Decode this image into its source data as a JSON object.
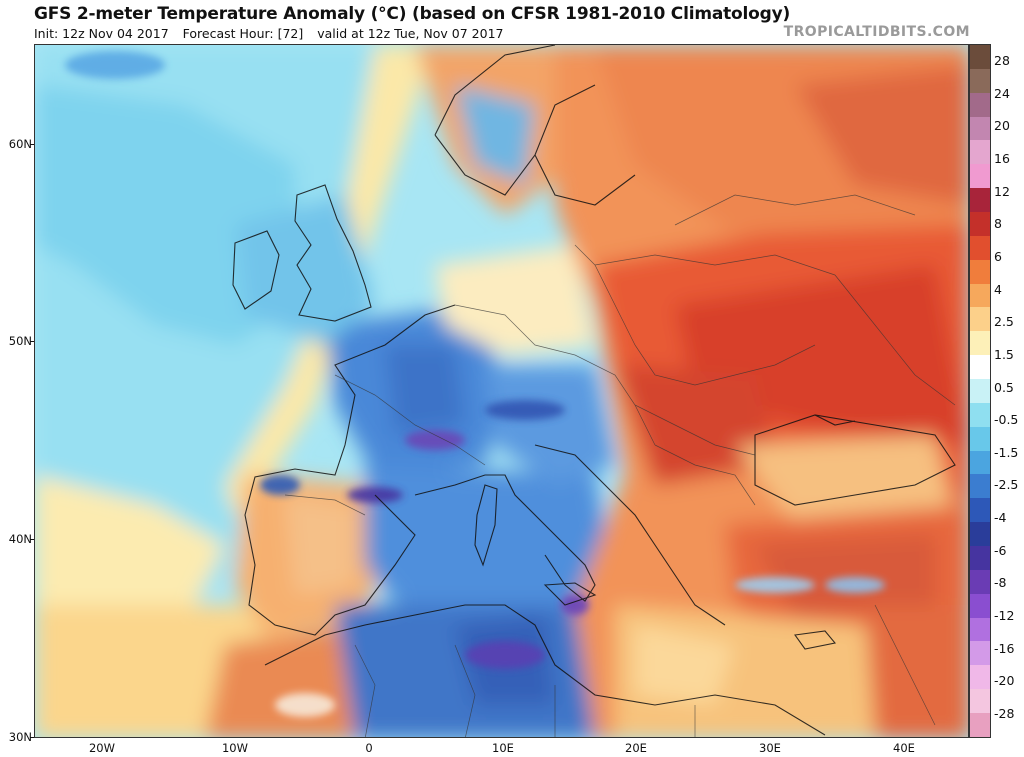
{
  "header": {
    "title": "GFS 2-meter Temperature Anomaly (°C) (based on CFSR 1981-2010 Climatology)",
    "init": "Init: 12z Nov 04 2017",
    "forecast_hour": "Forecast Hour: [72]",
    "valid": "valid at 12z Tue, Nov 07 2017",
    "brand": "TROPICALTIDBITS.COM"
  },
  "axes": {
    "lat_labels": [
      "60N",
      "50N",
      "40N",
      "30N"
    ],
    "lon_labels": [
      "20W",
      "10W",
      "0",
      "10E",
      "20E",
      "30E",
      "40E"
    ]
  },
  "colorbar": {
    "labels": [
      "28",
      "24",
      "20",
      "16",
      "12",
      "8",
      "6",
      "4",
      "2.5",
      "1.5",
      "0.5",
      "-0.5",
      "-1.5",
      "-2.5",
      "-4",
      "-6",
      "-8",
      "-12",
      "-16",
      "-20",
      "-28"
    ],
    "colors": [
      "#6b4c3b",
      "#8a6a5a",
      "#a26a8a",
      "#c286b0",
      "#e4a6cf",
      "#f09ad0",
      "#a8243a",
      "#c4302a",
      "#e14f2e",
      "#f07d3c",
      "#f6a85c",
      "#fcd08a",
      "#fdf0b8",
      "#ffffff",
      "#c9f2f6",
      "#8fdff0",
      "#68c8ea",
      "#4ba5e0",
      "#3b7dd0",
      "#2d58b8",
      "#2a3d9a",
      "#4634a0",
      "#6a3cb4",
      "#8a4ed0",
      "#b070e0",
      "#d39ae8",
      "#f0b8e8",
      "#f4c6e0",
      "#e8a0c0"
    ]
  }
}
